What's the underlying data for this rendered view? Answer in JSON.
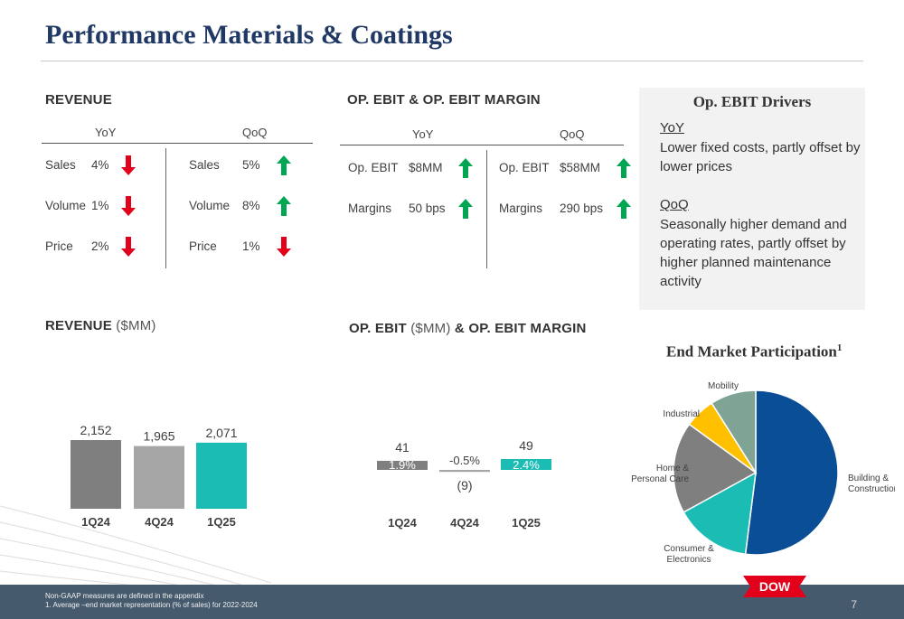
{
  "page": {
    "title": "Performance Materials & Coatings",
    "page_number": "7"
  },
  "revenue_table": {
    "heading": "REVENUE",
    "yoy_header": "YoY",
    "qoq_header": "QoQ",
    "yoy": [
      {
        "label": "Sales",
        "value": "4%",
        "direction": "down"
      },
      {
        "label": "Volume",
        "value": "1%",
        "direction": "down"
      },
      {
        "label": "Price",
        "value": "2%",
        "direction": "down"
      }
    ],
    "qoq": [
      {
        "label": "Sales",
        "value": "5%",
        "direction": "up"
      },
      {
        "label": "Volume",
        "value": "8%",
        "direction": "up"
      },
      {
        "label": "Price",
        "value": "1%",
        "direction": "down"
      }
    ]
  },
  "ebit_table": {
    "heading": "OP. EBIT & OP. EBIT MARGIN",
    "yoy_header": "YoY",
    "qoq_header": "QoQ",
    "yoy": [
      {
        "label": "Op. EBIT",
        "value": "$8MM",
        "direction": "up"
      },
      {
        "label": "Margins",
        "value": "50 bps",
        "direction": "up"
      }
    ],
    "qoq": [
      {
        "label": "Op. EBIT",
        "value": "$58MM",
        "direction": "up"
      },
      {
        "label": "Margins",
        "value": "290 bps",
        "direction": "up"
      }
    ]
  },
  "drivers": {
    "title": "Op. EBIT Drivers",
    "yoy_heading": "YoY",
    "yoy_text": "Lower fixed costs, partly offset by lower prices",
    "qoq_heading": "QoQ",
    "qoq_text": "Seasonally higher demand and operating rates, partly offset by higher planned maintenance activity"
  },
  "revenue_chart_heading": {
    "main": "REVENUE",
    "unit": "($MM)"
  },
  "ebit_chart_heading": {
    "part1": "OP. EBIT",
    "unit": "($MM)",
    "part2": "& OP. EBIT MARGIN"
  },
  "pie_title": "End Market Participation",
  "pie_title_sup": "1",
  "footnotes": {
    "line1": "Non-GAAP measures are defined in the appendix",
    "line2": "1. Average –end market representation (% of sales) for 2022-2024"
  },
  "logo_text": "DOW",
  "colors": {
    "title": "#1f3864",
    "arrow_up": "#00a651",
    "arrow_down": "#e2001a",
    "bar_dark": "#7f7f7f",
    "bar_light": "#a6a6a6",
    "bar_teal": "#1bbcb4",
    "footer": "#465a6e",
    "logo": "#e2001a"
  },
  "chart_data": [
    {
      "type": "bar",
      "categories": [
        "1Q24",
        "4Q24",
        "1Q25"
      ],
      "values": [
        2152,
        1965,
        2071
      ],
      "value_labels": [
        "2,152",
        "1,965",
        "2,071"
      ],
      "bar_colors": [
        "#7f7f7f",
        "#a6a6a6",
        "#1bbcb4"
      ]
    },
    {
      "type": "bar",
      "categories": [
        "1Q24",
        "4Q24",
        "1Q25"
      ],
      "values": [
        41,
        -9,
        49
      ],
      "value_labels": [
        "41",
        "(9)",
        "49"
      ],
      "margins": [
        "1.9%",
        "-0.5%",
        "2.4%"
      ],
      "bar_colors": [
        "#7f7f7f",
        "#a6a6a6",
        "#1bbcb4"
      ]
    },
    {
      "type": "pie",
      "labels": [
        "Building & Construction",
        "Consumer & Electronics",
        "Home & Personal Care",
        "Industrial",
        "Mobility"
      ],
      "values": [
        52,
        15,
        18,
        6,
        9
      ],
      "colors": [
        "#0a4f96",
        "#1bbcb4",
        "#7f7f7f",
        "#ffc000",
        "#7fa496"
      ]
    }
  ]
}
